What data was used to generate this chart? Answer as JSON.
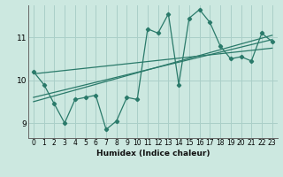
{
  "xlabel": "Humidex (Indice chaleur)",
  "bg_color": "#cce8e0",
  "grid_color": "#aacfc8",
  "line_color": "#2a7a6a",
  "xlim": [
    -0.5,
    23.5
  ],
  "ylim": [
    8.65,
    11.75
  ],
  "yticks": [
    9,
    10,
    11
  ],
  "xticks": [
    0,
    1,
    2,
    3,
    4,
    5,
    6,
    7,
    8,
    9,
    10,
    11,
    12,
    13,
    14,
    15,
    16,
    17,
    18,
    19,
    20,
    21,
    22,
    23
  ],
  "main_x": [
    0,
    1,
    2,
    3,
    4,
    5,
    6,
    7,
    8,
    9,
    10,
    11,
    12,
    13,
    14,
    15,
    16,
    17,
    18,
    19,
    20,
    21,
    22,
    23
  ],
  "main_y": [
    10.2,
    9.9,
    9.45,
    9.0,
    9.55,
    9.6,
    9.65,
    8.85,
    9.05,
    9.6,
    9.55,
    11.2,
    11.1,
    11.55,
    9.9,
    11.45,
    11.65,
    11.35,
    10.8,
    10.5,
    10.55,
    10.45,
    11.1,
    10.9
  ],
  "trend1_x": [
    0,
    23
  ],
  "trend1_y": [
    10.15,
    10.75
  ],
  "trend2_x": [
    0,
    23
  ],
  "trend2_y": [
    9.6,
    10.95
  ],
  "trend3_x": [
    0,
    23
  ],
  "trend3_y": [
    9.5,
    11.05
  ],
  "xlabel_fontsize": 6.5,
  "tick_fontsize": 5.5,
  "ytick_fontsize": 6.5
}
